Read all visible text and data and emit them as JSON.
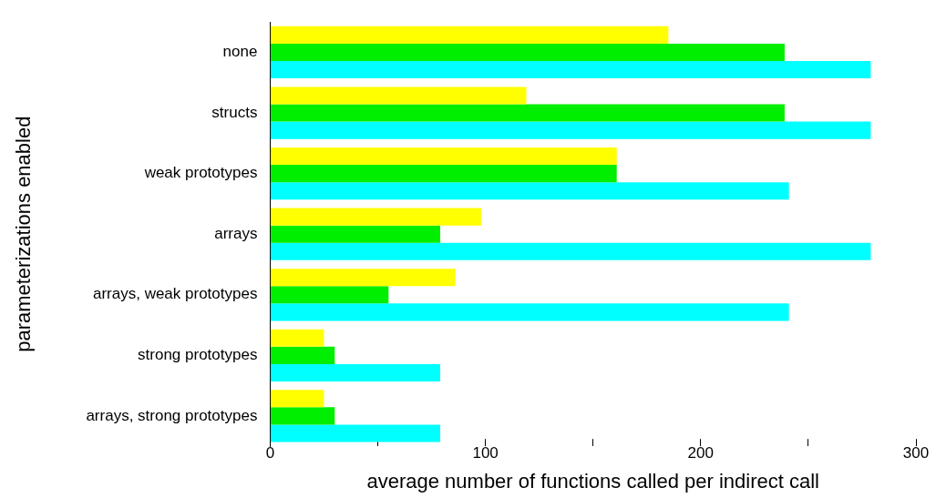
{
  "chart_data": {
    "type": "bar",
    "orientation": "horizontal",
    "xlabel": "average number of functions called per indirect call",
    "ylabel": "parameterizations enabled",
    "categories": [
      "none",
      "structs",
      "weak prototypes",
      "arrays",
      "arrays, weak prototypes",
      "strong prototypes",
      "arrays, strong prototypes"
    ],
    "series": [
      {
        "color": "#ffff00",
        "values": [
          185,
          119,
          161,
          98,
          86,
          25,
          25
        ]
      },
      {
        "color": "#00ee00",
        "values": [
          239,
          239,
          161,
          79,
          55,
          30,
          30
        ]
      },
      {
        "color": "#00ffff",
        "values": [
          279,
          279,
          241,
          279,
          241,
          79,
          79
        ]
      }
    ],
    "xlim": [
      0,
      300
    ],
    "xticks": [
      0,
      {
        "value": 50,
        "label": null
      },
      100,
      {
        "value": 150,
        "label": null
      },
      200,
      {
        "value": 250,
        "label": null
      },
      300
    ],
    "grid": false,
    "legend": false
  }
}
